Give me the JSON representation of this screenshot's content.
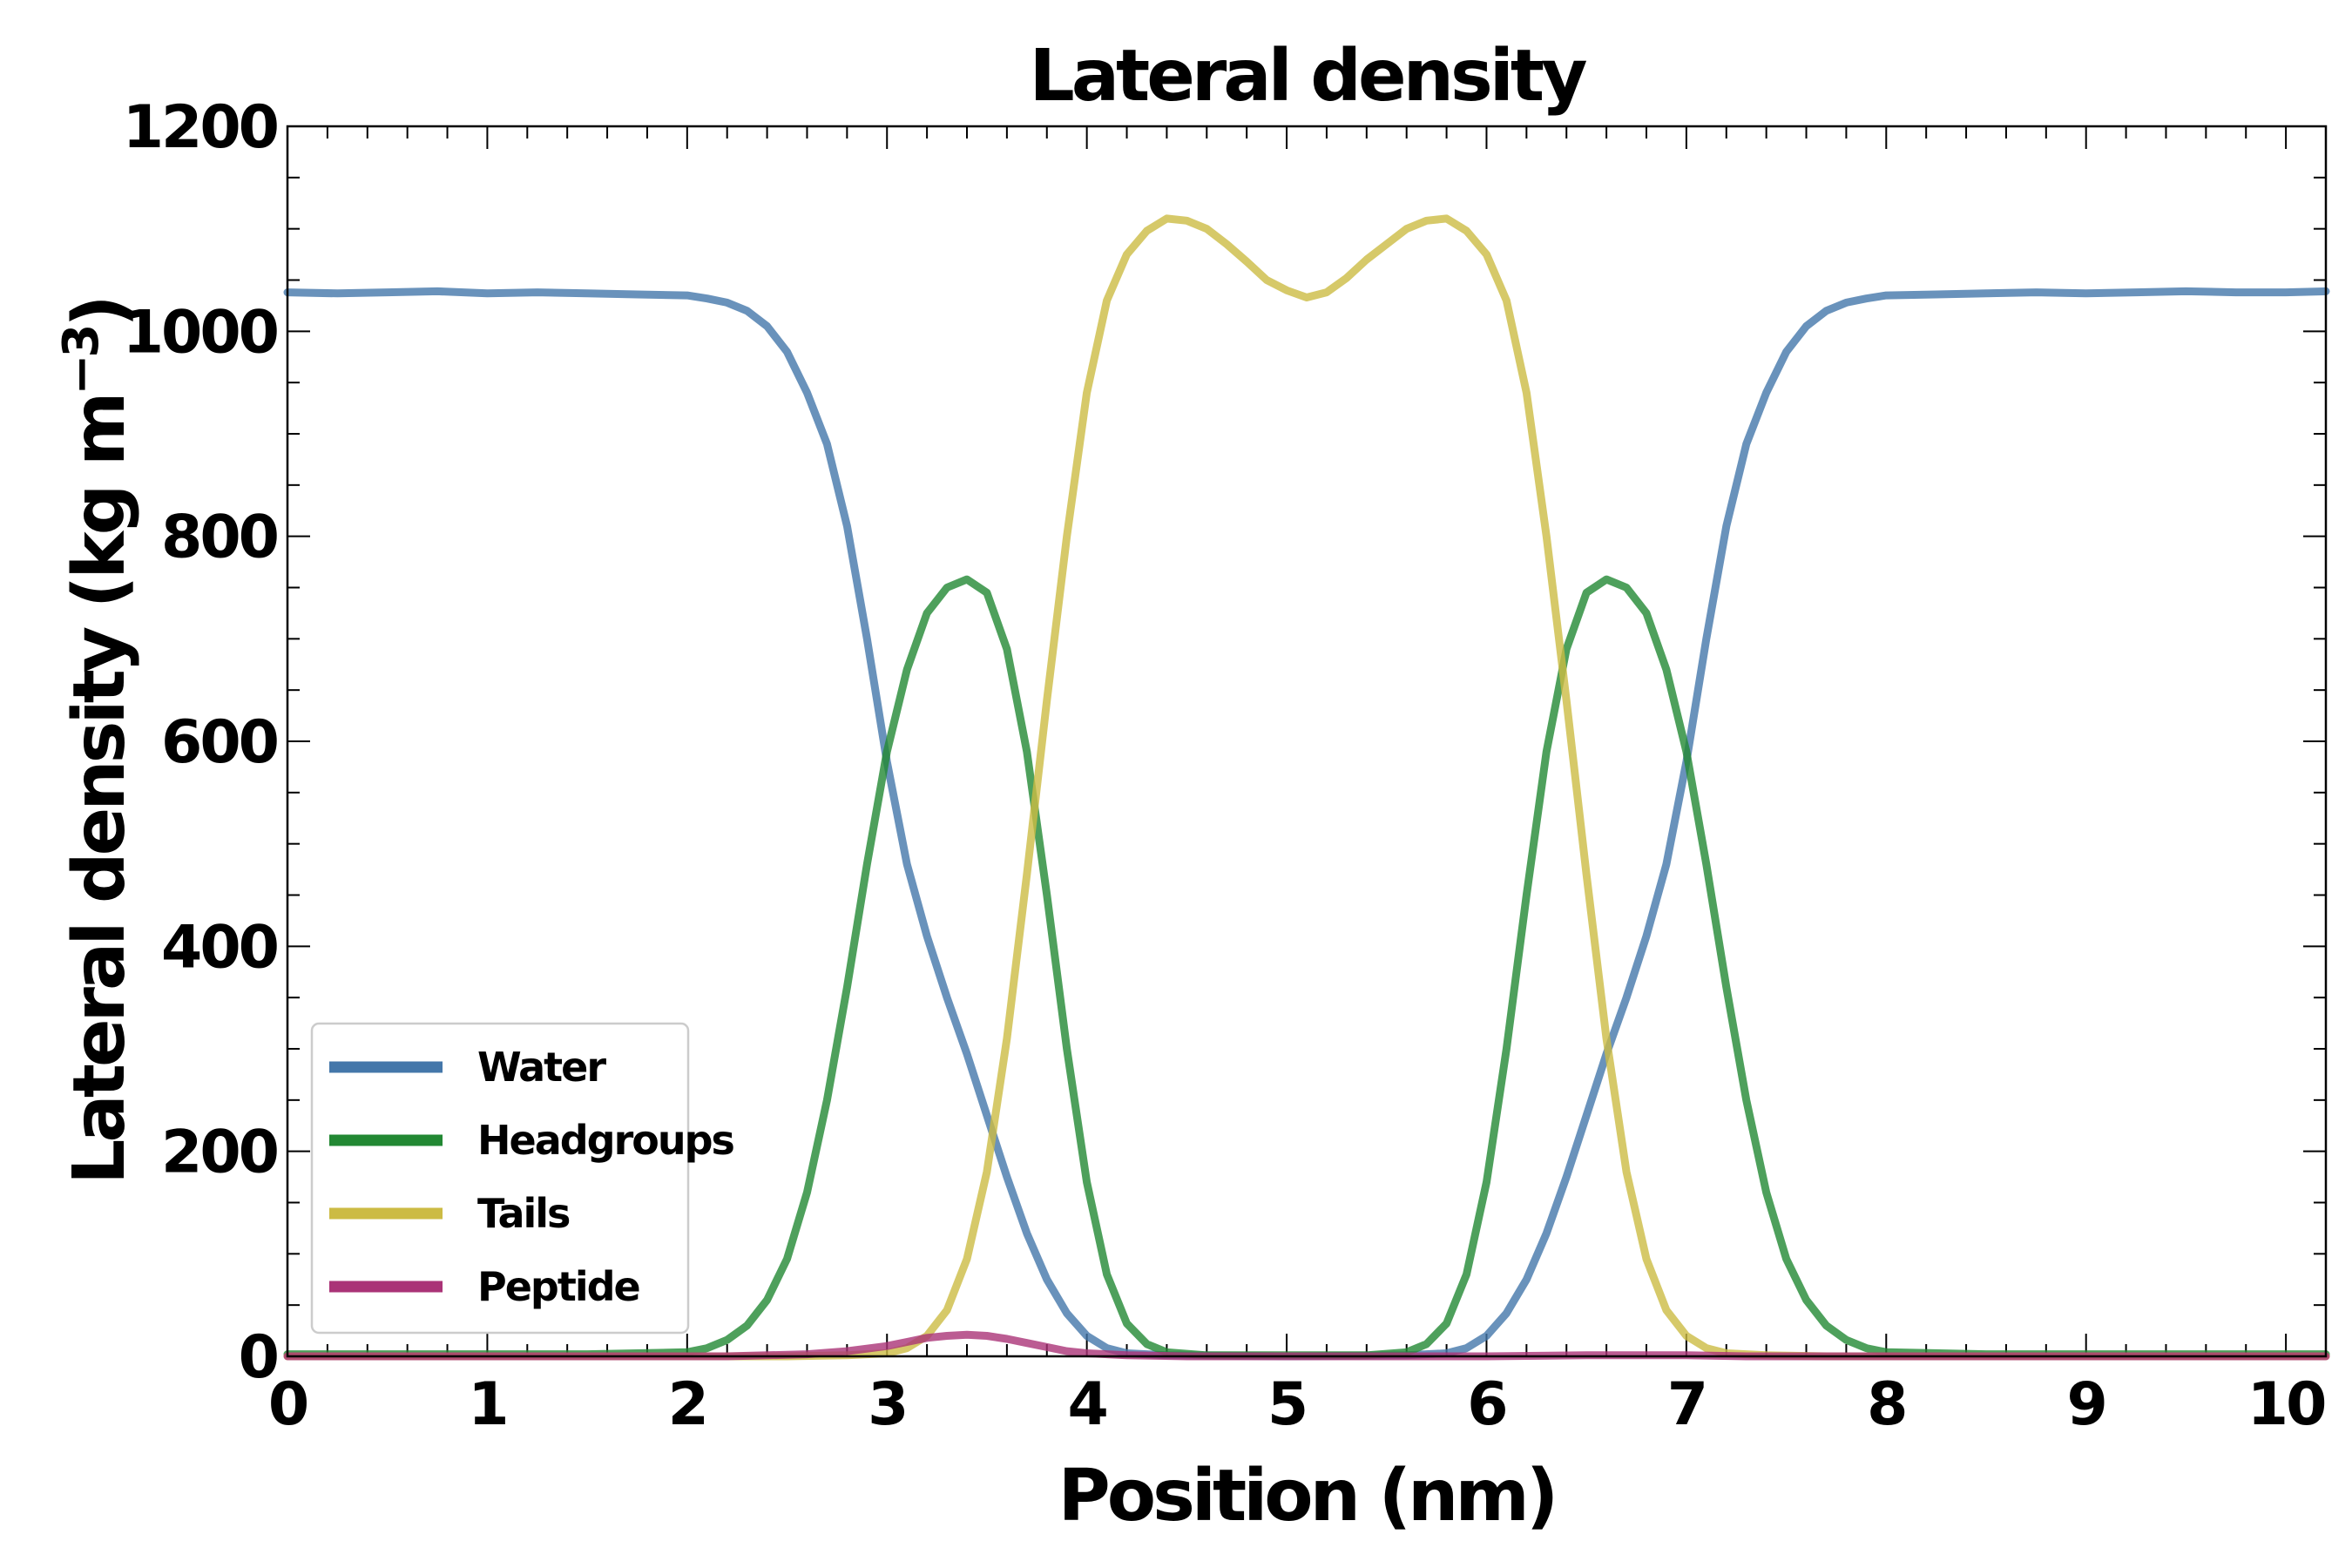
{
  "chart_data": {
    "type": "line",
    "title": "Lateral density",
    "xlabel": "Position (nm)",
    "ylabel_main": "Lateral density (kg m",
    "ylabel_exp": "−3",
    "ylabel_close": ")",
    "xlim": [
      0,
      10.2
    ],
    "ylim": [
      0,
      1200
    ],
    "xticks": [
      0,
      1,
      2,
      3,
      4,
      5,
      6,
      7,
      8,
      9,
      10
    ],
    "yticks": [
      0,
      200,
      400,
      600,
      800,
      1000,
      1200
    ],
    "legend_position": "lower-left",
    "series": [
      {
        "name": "Water",
        "color": "#4477AA",
        "points": [
          [
            0,
            1038
          ],
          [
            0.25,
            1037
          ],
          [
            0.5,
            1038
          ],
          [
            0.75,
            1039
          ],
          [
            1.0,
            1037
          ],
          [
            1.25,
            1038
          ],
          [
            1.5,
            1037
          ],
          [
            1.75,
            1036
          ],
          [
            2.0,
            1035
          ],
          [
            2.1,
            1032
          ],
          [
            2.2,
            1028
          ],
          [
            2.3,
            1020
          ],
          [
            2.4,
            1005
          ],
          [
            2.5,
            980
          ],
          [
            2.6,
            940
          ],
          [
            2.7,
            890
          ],
          [
            2.8,
            810
          ],
          [
            2.9,
            700
          ],
          [
            3.0,
            580
          ],
          [
            3.1,
            480
          ],
          [
            3.2,
            410
          ],
          [
            3.3,
            350
          ],
          [
            3.4,
            295
          ],
          [
            3.5,
            235
          ],
          [
            3.6,
            175
          ],
          [
            3.7,
            120
          ],
          [
            3.8,
            75
          ],
          [
            3.9,
            42
          ],
          [
            4.0,
            20
          ],
          [
            4.1,
            8
          ],
          [
            4.2,
            3
          ],
          [
            4.4,
            1
          ],
          [
            5.0,
            0
          ],
          [
            5.6,
            1
          ],
          [
            5.8,
            3
          ],
          [
            5.9,
            8
          ],
          [
            6.0,
            20
          ],
          [
            6.1,
            42
          ],
          [
            6.2,
            75
          ],
          [
            6.3,
            120
          ],
          [
            6.4,
            175
          ],
          [
            6.5,
            235
          ],
          [
            6.6,
            295
          ],
          [
            6.7,
            350
          ],
          [
            6.8,
            410
          ],
          [
            6.9,
            480
          ],
          [
            7.0,
            580
          ],
          [
            7.1,
            700
          ],
          [
            7.2,
            810
          ],
          [
            7.3,
            890
          ],
          [
            7.4,
            940
          ],
          [
            7.5,
            980
          ],
          [
            7.6,
            1005
          ],
          [
            7.7,
            1020
          ],
          [
            7.8,
            1028
          ],
          [
            7.9,
            1032
          ],
          [
            8.0,
            1035
          ],
          [
            8.25,
            1036
          ],
          [
            8.5,
            1037
          ],
          [
            8.75,
            1038
          ],
          [
            9.0,
            1037
          ],
          [
            9.25,
            1038
          ],
          [
            9.5,
            1039
          ],
          [
            9.75,
            1038
          ],
          [
            10.0,
            1038
          ],
          [
            10.2,
            1039
          ]
        ]
      },
      {
        "name": "Headgroups",
        "color": "#228833",
        "points": [
          [
            0,
            2
          ],
          [
            1.5,
            2
          ],
          [
            2.0,
            4
          ],
          [
            2.1,
            8
          ],
          [
            2.2,
            16
          ],
          [
            2.3,
            30
          ],
          [
            2.4,
            55
          ],
          [
            2.5,
            95
          ],
          [
            2.6,
            160
          ],
          [
            2.7,
            250
          ],
          [
            2.8,
            360
          ],
          [
            2.9,
            480
          ],
          [
            3.0,
            590
          ],
          [
            3.1,
            670
          ],
          [
            3.2,
            725
          ],
          [
            3.3,
            750
          ],
          [
            3.4,
            758
          ],
          [
            3.5,
            745
          ],
          [
            3.6,
            690
          ],
          [
            3.7,
            590
          ],
          [
            3.8,
            450
          ],
          [
            3.9,
            300
          ],
          [
            4.0,
            170
          ],
          [
            4.1,
            80
          ],
          [
            4.2,
            32
          ],
          [
            4.3,
            12
          ],
          [
            4.4,
            4
          ],
          [
            4.6,
            1
          ],
          [
            5.4,
            1
          ],
          [
            5.6,
            4
          ],
          [
            5.7,
            12
          ],
          [
            5.8,
            32
          ],
          [
            5.9,
            80
          ],
          [
            6.0,
            170
          ],
          [
            6.1,
            300
          ],
          [
            6.2,
            450
          ],
          [
            6.3,
            590
          ],
          [
            6.4,
            690
          ],
          [
            6.5,
            745
          ],
          [
            6.6,
            758
          ],
          [
            6.7,
            750
          ],
          [
            6.8,
            725
          ],
          [
            6.9,
            670
          ],
          [
            7.0,
            590
          ],
          [
            7.1,
            480
          ],
          [
            7.2,
            360
          ],
          [
            7.3,
            250
          ],
          [
            7.4,
            160
          ],
          [
            7.5,
            95
          ],
          [
            7.6,
            55
          ],
          [
            7.7,
            30
          ],
          [
            7.8,
            16
          ],
          [
            7.9,
            8
          ],
          [
            8.0,
            4
          ],
          [
            8.5,
            2
          ],
          [
            10.2,
            2
          ]
        ]
      },
      {
        "name": "Tails",
        "color": "#CCBB44",
        "points": [
          [
            0,
            0
          ],
          [
            2.5,
            0
          ],
          [
            2.8,
            1
          ],
          [
            3.0,
            3
          ],
          [
            3.1,
            8
          ],
          [
            3.2,
            20
          ],
          [
            3.3,
            45
          ],
          [
            3.4,
            95
          ],
          [
            3.5,
            180
          ],
          [
            3.6,
            310
          ],
          [
            3.7,
            470
          ],
          [
            3.8,
            640
          ],
          [
            3.9,
            800
          ],
          [
            4.0,
            940
          ],
          [
            4.1,
            1030
          ],
          [
            4.2,
            1075
          ],
          [
            4.3,
            1098
          ],
          [
            4.4,
            1110
          ],
          [
            4.5,
            1108
          ],
          [
            4.6,
            1100
          ],
          [
            4.7,
            1085
          ],
          [
            4.8,
            1068
          ],
          [
            4.9,
            1050
          ],
          [
            5.0,
            1040
          ],
          [
            5.1,
            1033
          ],
          [
            5.2,
            1038
          ],
          [
            5.3,
            1052
          ],
          [
            5.4,
            1070
          ],
          [
            5.5,
            1085
          ],
          [
            5.6,
            1100
          ],
          [
            5.7,
            1108
          ],
          [
            5.8,
            1110
          ],
          [
            5.9,
            1098
          ],
          [
            6.0,
            1075
          ],
          [
            6.1,
            1030
          ],
          [
            6.2,
            940
          ],
          [
            6.3,
            800
          ],
          [
            6.4,
            640
          ],
          [
            6.5,
            470
          ],
          [
            6.6,
            310
          ],
          [
            6.7,
            180
          ],
          [
            6.8,
            95
          ],
          [
            6.9,
            45
          ],
          [
            7.0,
            20
          ],
          [
            7.1,
            8
          ],
          [
            7.2,
            3
          ],
          [
            7.4,
            1
          ],
          [
            7.7,
            0
          ],
          [
            10.2,
            0
          ]
        ]
      },
      {
        "name": "Peptide",
        "color": "#AA3377",
        "points": [
          [
            0,
            0
          ],
          [
            2.2,
            0
          ],
          [
            2.6,
            2
          ],
          [
            2.8,
            5
          ],
          [
            3.0,
            10
          ],
          [
            3.1,
            14
          ],
          [
            3.2,
            18
          ],
          [
            3.3,
            20
          ],
          [
            3.4,
            21
          ],
          [
            3.5,
            20
          ],
          [
            3.6,
            17
          ],
          [
            3.7,
            13
          ],
          [
            3.8,
            9
          ],
          [
            3.9,
            5
          ],
          [
            4.0,
            3
          ],
          [
            4.2,
            1
          ],
          [
            4.5,
            0
          ],
          [
            6.0,
            0
          ],
          [
            6.5,
            1
          ],
          [
            7.0,
            1
          ],
          [
            7.3,
            0
          ],
          [
            10.2,
            0
          ]
        ]
      }
    ]
  }
}
